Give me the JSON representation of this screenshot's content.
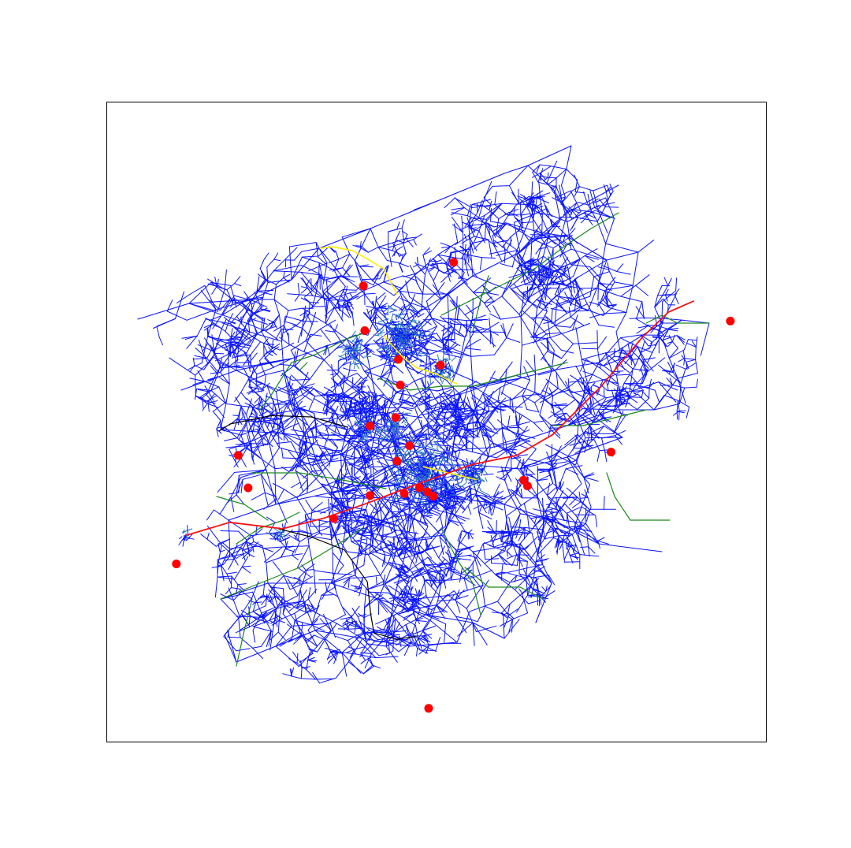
{
  "figure": {
    "title": "",
    "legend": "none",
    "axes_ticks_visible": false,
    "frame_color": "#000000",
    "background": "#ffffff"
  },
  "colors": {
    "main_network": "#0a14ff",
    "secondary_network": "#2a7ab8",
    "green_lines": "#1a8a1a",
    "red_line": "#ff1010",
    "yellow_line": "#ffee00",
    "black_line": "#000000",
    "points": "#ff0000"
  },
  "map_description": "none",
  "chart_data": {
    "type": "network-map",
    "title": "",
    "xlabel": "",
    "ylabel": "",
    "x_range": [
      0,
      1
    ],
    "y_range": [
      0,
      1
    ],
    "series": [
      {
        "line_color": "main_network"
      },
      {
        "line_color": "secondary_network"
      },
      {
        "line_color": "green_lines"
      },
      {
        "line_color": "red_line"
      },
      {
        "line_color": "yellow_line"
      },
      {
        "line_color": "black_line"
      },
      {
        "point_color": "points"
      }
    ],
    "points": [
      {
        "x": 0.526,
        "y": 0.75
      },
      {
        "x": 0.389,
        "y": 0.713
      },
      {
        "x": 0.391,
        "y": 0.643
      },
      {
        "x": 0.442,
        "y": 0.598
      },
      {
        "x": 0.506,
        "y": 0.589
      },
      {
        "x": 0.445,
        "y": 0.558
      },
      {
        "x": 0.399,
        "y": 0.494
      },
      {
        "x": 0.438,
        "y": 0.507
      },
      {
        "x": 0.459,
        "y": 0.463
      },
      {
        "x": 0.44,
        "y": 0.439
      },
      {
        "x": 0.474,
        "y": 0.397
      },
      {
        "x": 0.451,
        "y": 0.388
      },
      {
        "x": 0.495,
        "y": 0.384
      },
      {
        "x": 0.486,
        "y": 0.391
      },
      {
        "x": 0.399,
        "y": 0.385
      },
      {
        "x": 0.632,
        "y": 0.409
      },
      {
        "x": 0.638,
        "y": 0.4
      },
      {
        "x": 0.765,
        "y": 0.453
      },
      {
        "x": 0.946,
        "y": 0.658
      },
      {
        "x": 0.199,
        "y": 0.448
      },
      {
        "x": 0.214,
        "y": 0.397
      },
      {
        "x": 0.344,
        "y": 0.349
      },
      {
        "x": 0.105,
        "y": 0.278
      },
      {
        "x": 0.488,
        "y": 0.052
      }
    ],
    "red_line": [
      [
        0.121,
        0.323
      ],
      [
        0.186,
        0.343
      ],
      [
        0.266,
        0.333
      ],
      [
        0.33,
        0.35
      ],
      [
        0.392,
        0.372
      ],
      [
        0.458,
        0.398
      ],
      [
        0.552,
        0.433
      ],
      [
        0.622,
        0.448
      ],
      [
        0.676,
        0.48
      ],
      [
        0.75,
        0.556
      ],
      [
        0.812,
        0.632
      ],
      [
        0.852,
        0.672
      ],
      [
        0.89,
        0.689
      ]
    ],
    "black_line": [
      [
        0.17,
        0.486
      ],
      [
        0.187,
        0.497
      ],
      [
        0.25,
        0.51
      ],
      [
        0.31,
        0.508
      ],
      [
        0.365,
        0.492
      ]
    ],
    "black_line_2": [
      [
        0.26,
        0.333
      ],
      [
        0.31,
        0.32
      ],
      [
        0.36,
        0.3
      ],
      [
        0.395,
        0.25
      ],
      [
        0.4,
        0.2
      ],
      [
        0.405,
        0.17
      ],
      [
        0.44,
        0.16
      ],
      [
        0.47,
        0.165
      ]
    ],
    "yellow_line": [
      [
        0.323,
        0.772
      ],
      [
        0.343,
        0.774
      ],
      [
        0.373,
        0.768
      ],
      [
        0.395,
        0.755
      ],
      [
        0.42,
        0.74
      ],
      [
        0.43,
        0.72
      ],
      [
        0.44,
        0.7
      ]
    ],
    "yellow_line_2": [
      [
        0.42,
        0.635
      ],
      [
        0.45,
        0.6
      ],
      [
        0.47,
        0.585
      ],
      [
        0.5,
        0.575
      ],
      [
        0.53,
        0.56
      ]
    ],
    "yellow_line_3": [
      [
        0.48,
        0.43
      ],
      [
        0.52,
        0.42
      ],
      [
        0.56,
        0.41
      ]
    ]
  }
}
